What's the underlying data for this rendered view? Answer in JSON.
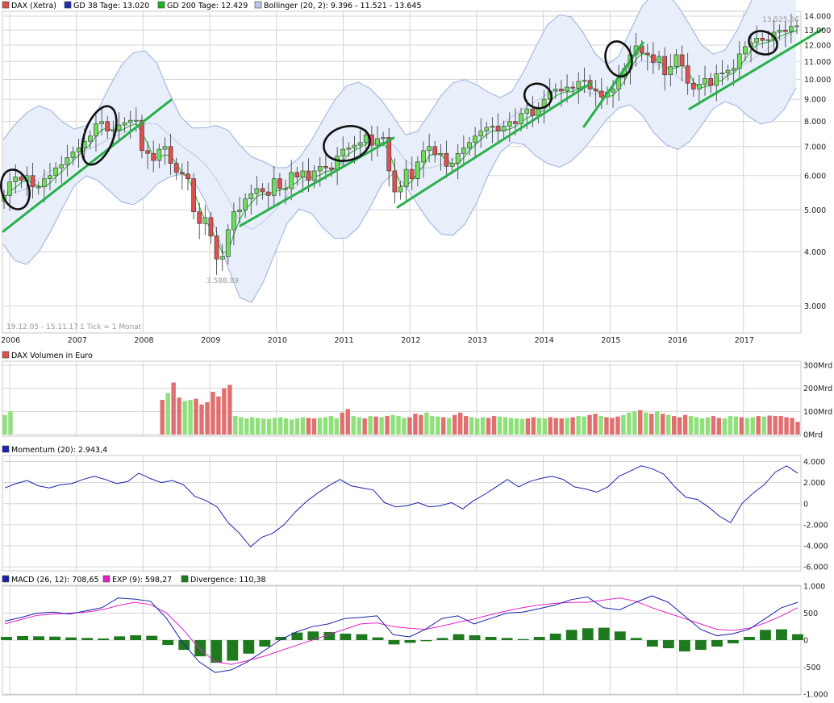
{
  "colors": {
    "up": "#6edc5c",
    "down": "#dd5050",
    "sma38": "#1f2fb0",
    "sma200": "#1fb01f",
    "band": "#9ab0e0",
    "bandFill": "#e8eefa",
    "trend": "#28b04a",
    "grid": "#d4d4d4",
    "volUp": "#8fe07a",
    "volDown": "#e07070",
    "momentum": "#1a22aa",
    "macd": "#1a22aa",
    "signal": "#e020c8",
    "divergence": "#1f7a1f"
  },
  "legends": {
    "price": [
      {
        "label": "DAX (Xetra)",
        "color": "#dd5050"
      },
      {
        "label": "GD 38 Tage: 13.020",
        "color": "#1f2fb0"
      },
      {
        "label": "GD 200 Tage: 12.429",
        "color": "#1fb01f"
      },
      {
        "label": "Bollinger (20, 2): 9.396 - 11.521 - 13.645",
        "color": "#b8c8ee"
      }
    ],
    "volume": [
      {
        "label": "DAX Volumen in Euro",
        "color": "#dd5050"
      }
    ],
    "momentum": [
      {
        "label": "Momentum (20): 2.943,4",
        "color": "#1a22aa"
      }
    ],
    "macd": [
      {
        "label": "MACD (26, 12): 708,65",
        "color": "#1a22aa"
      },
      {
        "label": "EXP (9): 598,27",
        "color": "#e020c8"
      },
      {
        "label": "Divergence: 110,38",
        "color": "#1f7a1f"
      }
    ]
  },
  "chart_data": [
    {
      "type": "candlestick",
      "title": "DAX (Xetra)",
      "scale": "log",
      "ylim": [
        2600,
        14300
      ],
      "yticks": [
        3000,
        4000,
        5000,
        6000,
        7000,
        8000,
        9000,
        10000,
        11000,
        12000,
        13000,
        14000
      ],
      "ytick_labels": [
        "3.000",
        "4.000",
        "5.000",
        "6.000",
        "7.000",
        "8.000",
        "9.000",
        "10.000",
        "11.000",
        "12.000",
        "13.000",
        "14.000"
      ],
      "x_range_years": [
        2006.0,
        2017.92
      ],
      "xticks": [
        2006,
        2007,
        2008,
        2009,
        2010,
        2011,
        2012,
        2013,
        2014,
        2015,
        2016,
        2017
      ],
      "xtick_labels": [
        "2006",
        "2007",
        "2008",
        "2009",
        "2010",
        "2011",
        "2012",
        "2013",
        "2014",
        "2015",
        "2016",
        "2017"
      ],
      "annotations": {
        "date_range": "19.12.05 - 15.11.17",
        "tick_info": "1 Tick = 1 Monat",
        "max_label": "13.525,56",
        "min_label": "3.588,89",
        "max_value": 13525.56,
        "min_value": 3588.89
      },
      "close": [
        5400,
        5800,
        5950,
        5850,
        6000,
        5650,
        5650,
        5900,
        6000,
        6250,
        6350,
        6600,
        6800,
        6950,
        7200,
        7400,
        7900,
        8000,
        7600,
        7650,
        7850,
        7950,
        8050,
        8050,
        6850,
        6750,
        6500,
        6900,
        7000,
        6400,
        6100,
        6050,
        5900,
        4950,
        4650,
        4800,
        4350,
        3850,
        3900,
        4500,
        4950,
        5000,
        5300,
        5450,
        5600,
        5500,
        5400,
        5900,
        5600,
        5600,
        6100,
        5950,
        6150,
        5850,
        6150,
        6300,
        6250,
        6200,
        6650,
        6900,
        6950,
        7050,
        7150,
        7450,
        7050,
        7300,
        7350,
        6150,
        5500,
        5650,
        6200,
        5900,
        6450,
        6850,
        7000,
        6700,
        6750,
        6300,
        6400,
        6750,
        6950,
        7150,
        7400,
        7600,
        7750,
        7800,
        7600,
        7800,
        8000,
        7900,
        8350,
        8550,
        8250,
        8600,
        9000,
        9400,
        9500,
        9400,
        9600,
        9550,
        9900,
        9950,
        9500,
        9400,
        9100,
        9350,
        9500,
        10100,
        10600,
        11400,
        11950,
        11500,
        11400,
        10950,
        11300,
        10250,
        10700,
        11400,
        10750,
        9800,
        9500,
        9750,
        10050,
        9680,
        10300,
        10350,
        10500,
        10600,
        11450,
        11900,
        12150,
        12450,
        12300,
        12350,
        12850,
        13000,
        12900,
        13250,
        13300
      ],
      "sma38": [
        5500,
        5480,
        5600,
        5900,
        6150,
        6350,
        6600,
        6850,
        7050,
        7300,
        7500,
        7700,
        7900,
        7900,
        7450,
        7050,
        6750,
        6400,
        5900,
        5300,
        4700,
        4500,
        4700,
        5000,
        5400,
        5750,
        5950,
        6050,
        6200,
        6450,
        6700,
        6950,
        7150,
        7050,
        6500,
        6250,
        6250,
        6350,
        6550,
        6800,
        7100,
        7500,
        7850,
        8200,
        8600,
        8900,
        9250,
        9400,
        9500,
        9400,
        9250,
        9350,
        9850,
        10650,
        11050,
        10900,
        10600,
        10100,
        9800,
        9700,
        9900,
        10200,
        10600,
        11000,
        11450,
        12000,
        12500,
        13000
      ]
    },
    {
      "type": "bar",
      "title": "DAX Volumen in Euro",
      "unit": "Mrd",
      "ylim": [
        0,
        300
      ],
      "yticks": [
        0,
        100,
        200,
        300
      ],
      "ytick_labels": [
        "0Mrd",
        "100Mrd",
        "200Mrd",
        "300Mrd"
      ],
      "values": [
        85,
        100,
        0,
        0,
        0,
        0,
        0,
        0,
        0,
        0,
        0,
        0,
        0,
        0,
        0,
        0,
        0,
        0,
        0,
        0,
        0,
        0,
        0,
        0,
        0,
        0,
        0,
        0,
        150,
        180,
        225,
        160,
        145,
        150,
        155,
        130,
        140,
        185,
        165,
        200,
        215,
        80,
        75,
        70,
        75,
        72,
        70,
        68,
        72,
        75,
        70,
        65,
        70,
        75,
        72,
        70,
        72,
        75,
        80,
        70,
        95,
        110,
        80,
        75,
        70,
        80,
        78,
        75,
        80,
        85,
        80,
        72,
        75,
        90,
        85,
        95,
        80,
        78,
        75,
        72,
        85,
        95,
        80,
        75,
        70,
        75,
        72,
        80,
        78,
        75,
        72,
        70,
        68,
        70,
        75,
        72,
        70,
        75,
        72,
        70,
        72,
        75,
        80,
        78,
        85,
        90,
        80,
        75,
        72,
        78,
        85,
        95,
        100,
        105,
        95,
        90,
        100,
        90,
        85,
        80,
        75,
        85,
        80,
        75,
        70,
        75,
        80,
        72,
        70,
        80,
        78,
        75,
        72,
        75,
        80,
        78,
        82,
        80,
        80,
        75,
        72,
        55
      ],
      "up": [
        true,
        true,
        false,
        false,
        false,
        false,
        false,
        false,
        false,
        false,
        false,
        false,
        false,
        false,
        false,
        false,
        false,
        false,
        false,
        false,
        false,
        false,
        false,
        false,
        false,
        false,
        false,
        false,
        false,
        true,
        false,
        false,
        true,
        true,
        false,
        false,
        false,
        false,
        false,
        false,
        false,
        true,
        true,
        true,
        true,
        true,
        true,
        true,
        true,
        true,
        true,
        true,
        true,
        true,
        false,
        false,
        true,
        true,
        true,
        true,
        false,
        false,
        true,
        true,
        false,
        true,
        false,
        true,
        false,
        true,
        true,
        true,
        false,
        false,
        false,
        true,
        true,
        true,
        false,
        true,
        false,
        false,
        false,
        true,
        true,
        true,
        false,
        false,
        true,
        true,
        true,
        true,
        true,
        false,
        false,
        true,
        true,
        false,
        false,
        false,
        true,
        false,
        true,
        true,
        false,
        false,
        true,
        false,
        false,
        false,
        true,
        true,
        true,
        false,
        true,
        false,
        true,
        false,
        true,
        false,
        false,
        false,
        true,
        true,
        true,
        true,
        false,
        false,
        true,
        true,
        true,
        false,
        true,
        true,
        false,
        true,
        false,
        false,
        false,
        false
      ]
    },
    {
      "type": "line",
      "title": "Momentum (20)",
      "ylim": [
        -6300,
        4500
      ],
      "yticks": [
        -6000,
        -4000,
        -2000,
        0,
        2000,
        4000
      ],
      "ytick_labels": [
        "-6.000",
        "-4.000",
        "-2.000",
        "0",
        "2.000",
        "4.000"
      ],
      "values": [
        1500,
        1900,
        2200,
        1700,
        1500,
        1800,
        1900,
        2300,
        2600,
        2300,
        1900,
        2100,
        2900,
        2400,
        2000,
        2200,
        1800,
        700,
        300,
        -300,
        -1800,
        -2800,
        -4100,
        -3200,
        -2800,
        -2000,
        -800,
        200,
        1000,
        1700,
        2300,
        1700,
        1500,
        1300,
        100,
        -300,
        -200,
        100,
        -300,
        -200,
        100,
        -500,
        300,
        900,
        1600,
        2300,
        1600,
        2100,
        2400,
        2600,
        2300,
        1600,
        1400,
        1100,
        1600,
        2600,
        3100,
        3600,
        3300,
        2800,
        1600,
        600,
        400,
        -300,
        -1200,
        -1800,
        0,
        1000,
        1800,
        3000,
        3600,
        2900
      ]
    },
    {
      "type": "line",
      "title": "MACD / EXP / Divergence",
      "ylim": [
        -1000,
        1000
      ],
      "yticks": [
        -1000,
        -500,
        0,
        500,
        1000
      ],
      "ytick_labels": [
        "-1.000",
        "-500",
        "0",
        "500",
        "1.000"
      ],
      "macd": [
        350,
        420,
        500,
        520,
        480,
        540,
        600,
        780,
        760,
        720,
        400,
        -50,
        -400,
        -600,
        -550,
        -400,
        -200,
        0,
        150,
        250,
        300,
        400,
        420,
        450,
        100,
        60,
        200,
        400,
        450,
        300,
        400,
        500,
        520,
        580,
        650,
        750,
        800,
        600,
        560,
        700,
        820,
        700,
        450,
        200,
        80,
        120,
        200,
        400,
        600,
        700
      ],
      "exp": [
        300,
        380,
        460,
        480,
        500,
        520,
        560,
        640,
        700,
        660,
        500,
        200,
        -150,
        -400,
        -450,
        -380,
        -300,
        -200,
        -100,
        0,
        100,
        200,
        300,
        320,
        250,
        220,
        200,
        260,
        330,
        390,
        470,
        540,
        600,
        650,
        680,
        700,
        700,
        740,
        780,
        720,
        600,
        500,
        400,
        300,
        200,
        180,
        220,
        320,
        450,
        600
      ],
      "divergence": [
        60,
        75,
        70,
        65,
        50,
        40,
        30,
        70,
        90,
        80,
        -90,
        -180,
        -300,
        -420,
        -380,
        -250,
        -120,
        60,
        140,
        160,
        150,
        120,
        110,
        50,
        -80,
        -50,
        -20,
        40,
        110,
        90,
        60,
        40,
        20,
        60,
        120,
        190,
        220,
        230,
        160,
        40,
        -120,
        -150,
        -210,
        -180,
        -120,
        -60,
        60,
        190,
        200,
        110
      ]
    }
  ]
}
